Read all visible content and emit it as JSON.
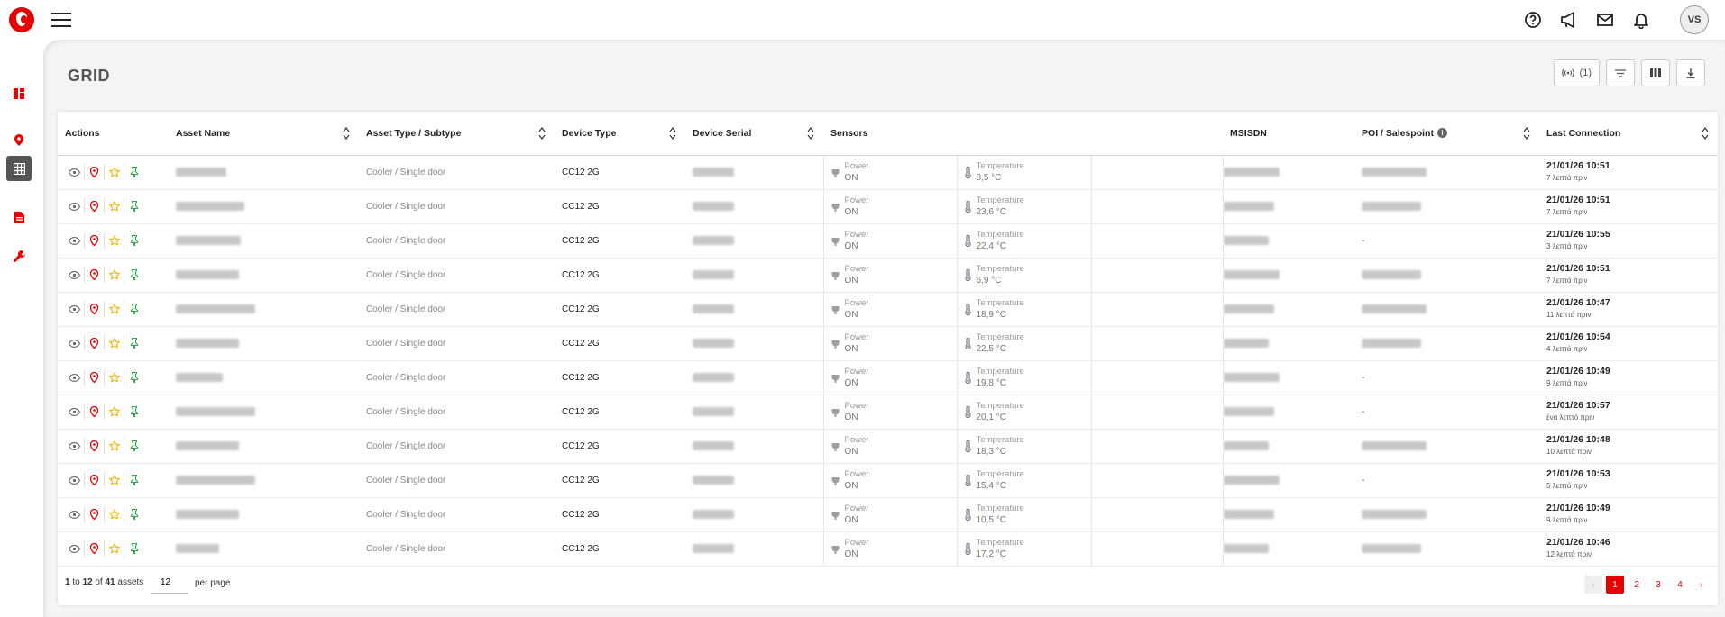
{
  "header": {
    "user_initials": "VS",
    "icons": [
      "help-icon",
      "megaphone-icon",
      "mail-icon",
      "bell-icon"
    ]
  },
  "sidebar": {
    "items": [
      {
        "icon": "dashboard-icon"
      },
      {
        "icon": "map-pin-icon"
      },
      {
        "icon": "grid-icon",
        "active": true
      },
      {
        "icon": "report-icon"
      },
      {
        "icon": "wrench-icon"
      }
    ]
  },
  "page": {
    "title": "GRID"
  },
  "toolbar": {
    "signal_count": "(1)"
  },
  "table": {
    "columns": {
      "actions": "Actions",
      "asset_name": "Asset Name",
      "asset_type": "Asset Type / Subtype",
      "device_type": "Device Type",
      "device_serial": "Device Serial",
      "sensors": "Sensors",
      "msisdn": "MSISDN",
      "poi": "POI / Salespoint",
      "last_connection": "Last Connection"
    },
    "sensor_labels": {
      "power": "Power",
      "temperature": "Temperature"
    },
    "rows": [
      {
        "asset_type": "Cooler / Single door",
        "device_type": "CC12 2G",
        "power": "ON",
        "temperature": "8,5 °C",
        "poi": "",
        "date": "21/01/26 10:51",
        "ago": "7 λεπτά πριν"
      },
      {
        "asset_type": "Cooler / Single door",
        "device_type": "CC12 2G",
        "power": "ON",
        "temperature": "23,6 °C",
        "poi": "",
        "date": "21/01/26 10:51",
        "ago": "7 λεπτά πριν"
      },
      {
        "asset_type": "Cooler / Single door",
        "device_type": "CC12 2G",
        "power": "ON",
        "temperature": "22,4 °C",
        "poi": "-",
        "date": "21/01/26 10:55",
        "ago": "3 λεπτά πριν"
      },
      {
        "asset_type": "Cooler / Single door",
        "device_type": "CC12 2G",
        "power": "ON",
        "temperature": "6,9 °C",
        "poi": "",
        "date": "21/01/26 10:51",
        "ago": "7 λεπτά πριν"
      },
      {
        "asset_type": "Cooler / Single door",
        "device_type": "CC12 2G",
        "power": "ON",
        "temperature": "18,9 °C",
        "poi": "",
        "date": "21/01/26 10:47",
        "ago": "11 λεπτά πριν"
      },
      {
        "asset_type": "Cooler / Single door",
        "device_type": "CC12 2G",
        "power": "ON",
        "temperature": "22,5 °C",
        "poi": "",
        "date": "21/01/26 10:54",
        "ago": "4 λεπτά πριν"
      },
      {
        "asset_type": "Cooler / Single door",
        "device_type": "CC12 2G",
        "power": "ON",
        "temperature": "19,8 °C",
        "poi": "-",
        "date": "21/01/26 10:49",
        "ago": "9 λεπτά πριν"
      },
      {
        "asset_type": "Cooler / Single door",
        "device_type": "CC12 2G",
        "power": "ON",
        "temperature": "20,1 °C",
        "poi": "-",
        "date": "21/01/26 10:57",
        "ago": "ένα λεπτό πριν"
      },
      {
        "asset_type": "Cooler / Single door",
        "device_type": "CC12 2G",
        "power": "ON",
        "temperature": "18,3 °C",
        "poi": "",
        "date": "21/01/26 10:48",
        "ago": "10 λεπτά πριν"
      },
      {
        "asset_type": "Cooler / Single door",
        "device_type": "CC12 2G",
        "power": "ON",
        "temperature": "15,4 °C",
        "poi": "-",
        "date": "21/01/26 10:53",
        "ago": "5 λεπτά πριν"
      },
      {
        "asset_type": "Cooler / Single door",
        "device_type": "CC12 2G",
        "power": "ON",
        "temperature": "10,5 °C",
        "poi": "",
        "date": "21/01/26 10:49",
        "ago": "9 λεπτά πριν"
      },
      {
        "asset_type": "Cooler / Single door",
        "device_type": "CC12 2G",
        "power": "ON",
        "temperature": "17,2 °C",
        "poi": "",
        "date": "21/01/26 10:46",
        "ago": "12 λεπτά πριν"
      }
    ]
  },
  "footer": {
    "range_from": "1",
    "range_to_word": "to",
    "range_to": "12",
    "of_word": "of",
    "total": "41",
    "assets_word": "assets",
    "per_page_value": "12",
    "per_page_label": "per page",
    "pages": [
      "1",
      "2",
      "3",
      "4"
    ],
    "current_page": "1"
  },
  "colors": {
    "brand": "#e60000",
    "pin": "#2ea84a",
    "star": "#f0b400"
  }
}
